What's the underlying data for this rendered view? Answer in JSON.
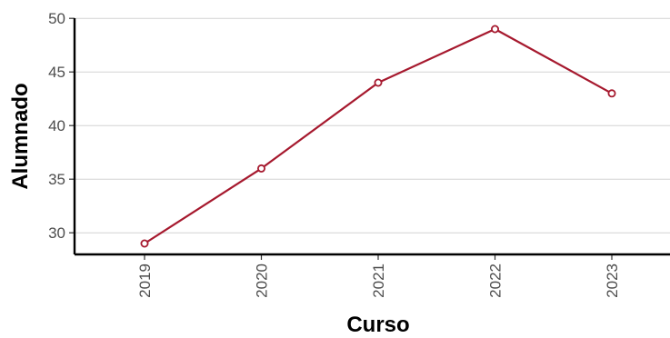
{
  "chart_data": {
    "type": "line",
    "xlabel": "Curso",
    "ylabel": "Alumnado",
    "categories": [
      "2019",
      "2020",
      "2021",
      "2022",
      "2023"
    ],
    "series": [
      {
        "values": [
          29,
          36,
          44,
          49,
          43
        ],
        "color": "#a6192e"
      }
    ],
    "ylim": [
      28,
      50
    ],
    "yticks": [
      30,
      35,
      40,
      45,
      50
    ],
    "grid": "horizontal",
    "legend": "none",
    "markers": "open-circle"
  }
}
